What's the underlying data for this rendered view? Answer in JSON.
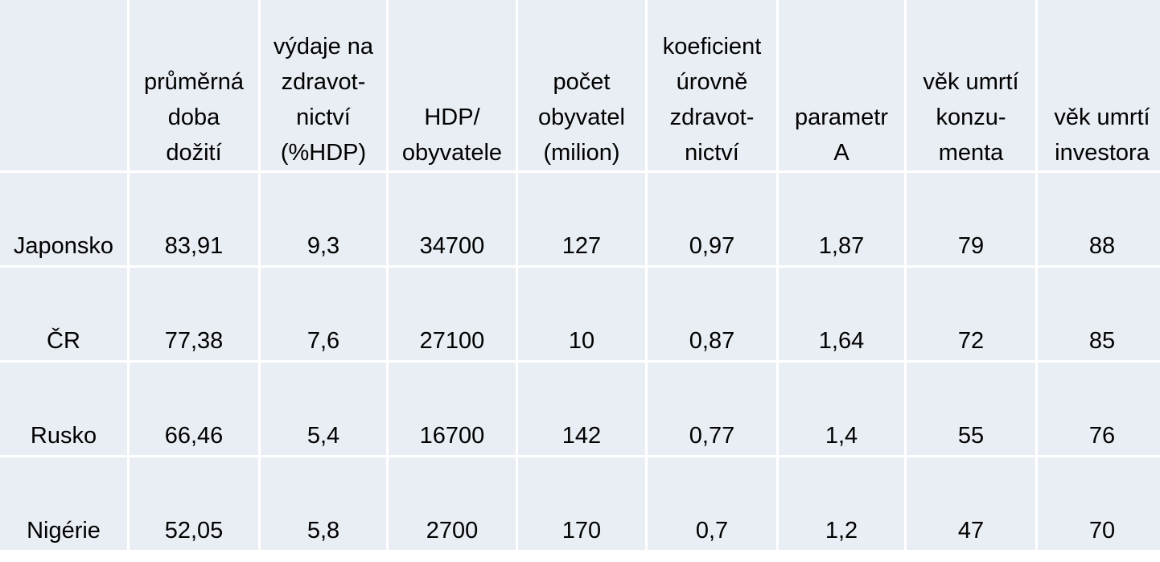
{
  "table": {
    "header": [
      "průměrná\ndoba\ndožití",
      "výdaje na\nzdravot-\nnictví\n(%HDP)",
      "HDP/\nobyvatele",
      "počet\nobyvatel\n(milion)",
      "koeficient\núrovně\nzdravot-\nnictví",
      "parametr\nA",
      "věk umrtí\nkonzu-\nmenta",
      "věk umrtí\ninvestora"
    ],
    "rows": [
      [
        "Japonsko",
        "83,91",
        "9,3",
        "34700",
        "127",
        "0,97",
        "1,87",
        "79",
        "88"
      ],
      [
        "ČR",
        "77,38",
        "7,6",
        "27100",
        "10",
        "0,87",
        "1,64",
        "72",
        "85"
      ],
      [
        "Rusko",
        "66,46",
        "5,4",
        "16700",
        "142",
        "0,77",
        "1,4",
        "55",
        "76"
      ],
      [
        "Nigérie",
        "52,05",
        "5,8",
        "2700",
        "170",
        "0,7",
        "1,2",
        "47",
        "70"
      ]
    ]
  }
}
